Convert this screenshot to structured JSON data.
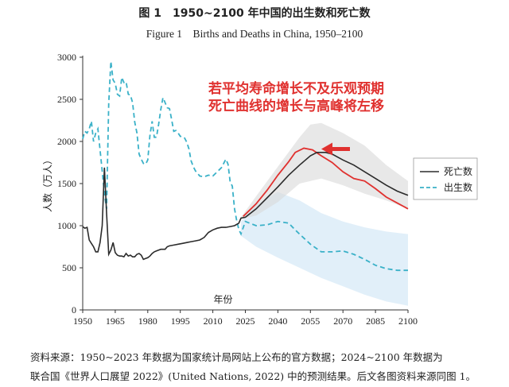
{
  "title_cn": "图 1　1950~2100 年中国的出生数和死亡数",
  "title_en": "Figure 1　Births and Deaths in China, 1950–2100",
  "annotation": [
    "若平均寿命增长不及乐观预期",
    "死亡曲线的增长与高峰将左移"
  ],
  "source": [
    "资料来源：1950~2023 年数据为国家统计局网站上公布的官方数据；2024~2100 年数据为",
    "联合国《世界人口展望 2022》(United Nations, 2022) 中的预测结果。后文各图资料来源同图 1。"
  ],
  "chart_data": {
    "type": "line",
    "ylabel": "人数（万人）",
    "xlabel": "年份",
    "xlim": [
      1950,
      2100
    ],
    "ylim": [
      0,
      3000
    ],
    "x_ticks": [
      1950,
      1965,
      1980,
      1995,
      2010,
      2025,
      2040,
      2055,
      2070,
      2085,
      2100
    ],
    "y_ticks": [
      0,
      500,
      1000,
      1500,
      2000,
      2500,
      3000
    ],
    "legend_position": "right",
    "colors": {
      "deaths": "#2b2b2b",
      "births": "#3ab1c8",
      "alt_deaths": "#e0312f",
      "deaths_band": "#d9d9d9",
      "births_band": "#dcecf8",
      "arrow": "#e0312f"
    },
    "series": [
      {
        "name": "死亡数",
        "style": "solid",
        "points": [
          [
            1950,
            990
          ],
          [
            1951,
            970
          ],
          [
            1952,
            980
          ],
          [
            1953,
            830
          ],
          [
            1954,
            790
          ],
          [
            1955,
            750
          ],
          [
            1956,
            690
          ],
          [
            1957,
            690
          ],
          [
            1958,
            800
          ],
          [
            1959,
            1000
          ],
          [
            1960,
            1690
          ],
          [
            1961,
            1150
          ],
          [
            1962,
            660
          ],
          [
            1963,
            710
          ],
          [
            1964,
            800
          ],
          [
            1965,
            680
          ],
          [
            1966,
            650
          ],
          [
            1967,
            640
          ],
          [
            1968,
            640
          ],
          [
            1969,
            630
          ],
          [
            1970,
            670
          ],
          [
            1971,
            640
          ],
          [
            1972,
            650
          ],
          [
            1973,
            630
          ],
          [
            1974,
            630
          ],
          [
            1975,
            660
          ],
          [
            1976,
            670
          ],
          [
            1977,
            650
          ],
          [
            1978,
            600
          ],
          [
            1979,
            610
          ],
          [
            1980,
            620
          ],
          [
            1981,
            640
          ],
          [
            1982,
            670
          ],
          [
            1983,
            690
          ],
          [
            1984,
            700
          ],
          [
            1985,
            710
          ],
          [
            1986,
            720
          ],
          [
            1987,
            720
          ],
          [
            1988,
            720
          ],
          [
            1989,
            750
          ],
          [
            1990,
            760
          ],
          [
            1992,
            770
          ],
          [
            1994,
            780
          ],
          [
            1996,
            790
          ],
          [
            1998,
            800
          ],
          [
            2000,
            810
          ],
          [
            2002,
            820
          ],
          [
            2004,
            830
          ],
          [
            2006,
            860
          ],
          [
            2008,
            920
          ],
          [
            2010,
            950
          ],
          [
            2012,
            970
          ],
          [
            2014,
            980
          ],
          [
            2016,
            980
          ],
          [
            2018,
            990
          ],
          [
            2020,
            1000
          ],
          [
            2022,
            1030
          ],
          [
            2023,
            1090
          ],
          [
            2025,
            1100
          ],
          [
            2030,
            1200
          ],
          [
            2035,
            1330
          ],
          [
            2040,
            1460
          ],
          [
            2045,
            1600
          ],
          [
            2050,
            1720
          ],
          [
            2055,
            1830
          ],
          [
            2058,
            1870
          ],
          [
            2062,
            1870
          ],
          [
            2065,
            1850
          ],
          [
            2070,
            1780
          ],
          [
            2075,
            1720
          ],
          [
            2080,
            1640
          ],
          [
            2085,
            1560
          ],
          [
            2090,
            1480
          ],
          [
            2095,
            1410
          ],
          [
            2100,
            1360
          ]
        ]
      },
      {
        "name": "出生数",
        "style": "dashed",
        "points": [
          [
            1950,
            2030
          ],
          [
            1951,
            2120
          ],
          [
            1952,
            2100
          ],
          [
            1953,
            2150
          ],
          [
            1954,
            2240
          ],
          [
            1955,
            2000
          ],
          [
            1956,
            2100
          ],
          [
            1957,
            2150
          ],
          [
            1958,
            1900
          ],
          [
            1959,
            1650
          ],
          [
            1960,
            1380
          ],
          [
            1961,
            1200
          ],
          [
            1962,
            2450
          ],
          [
            1963,
            2950
          ],
          [
            1964,
            2730
          ],
          [
            1965,
            2690
          ],
          [
            1966,
            2560
          ],
          [
            1967,
            2540
          ],
          [
            1968,
            2760
          ],
          [
            1969,
            2700
          ],
          [
            1970,
            2710
          ],
          [
            1971,
            2560
          ],
          [
            1972,
            2550
          ],
          [
            1973,
            2460
          ],
          [
            1974,
            2230
          ],
          [
            1975,
            2100
          ],
          [
            1976,
            1850
          ],
          [
            1977,
            1790
          ],
          [
            1978,
            1740
          ],
          [
            1979,
            1730
          ],
          [
            1980,
            1780
          ],
          [
            1981,
            2070
          ],
          [
            1982,
            2240
          ],
          [
            1983,
            2050
          ],
          [
            1984,
            2050
          ],
          [
            1985,
            2200
          ],
          [
            1986,
            2380
          ],
          [
            1987,
            2520
          ],
          [
            1988,
            2460
          ],
          [
            1989,
            2400
          ],
          [
            1990,
            2390
          ],
          [
            1991,
            2260
          ],
          [
            1992,
            2120
          ],
          [
            1993,
            2130
          ],
          [
            1994,
            2100
          ],
          [
            1995,
            2060
          ],
          [
            1996,
            2060
          ],
          [
            1997,
            2040
          ],
          [
            1998,
            1990
          ],
          [
            1999,
            1910
          ],
          [
            2000,
            1770
          ],
          [
            2001,
            1700
          ],
          [
            2002,
            1650
          ],
          [
            2004,
            1590
          ],
          [
            2006,
            1580
          ],
          [
            2008,
            1600
          ],
          [
            2010,
            1590
          ],
          [
            2012,
            1640
          ],
          [
            2014,
            1690
          ],
          [
            2016,
            1790
          ],
          [
            2017,
            1730
          ],
          [
            2018,
            1520
          ],
          [
            2019,
            1470
          ],
          [
            2020,
            1200
          ],
          [
            2021,
            1060
          ],
          [
            2022,
            956
          ],
          [
            2023,
            902
          ],
          [
            2025,
            1050
          ],
          [
            2030,
            1000
          ],
          [
            2035,
            1010
          ],
          [
            2040,
            1050
          ],
          [
            2045,
            1030
          ],
          [
            2048,
            950
          ],
          [
            2050,
            900
          ],
          [
            2055,
            780
          ],
          [
            2060,
            690
          ],
          [
            2065,
            690
          ],
          [
            2070,
            700
          ],
          [
            2075,
            660
          ],
          [
            2080,
            600
          ],
          [
            2085,
            530
          ],
          [
            2090,
            490
          ],
          [
            2095,
            470
          ],
          [
            2100,
            470
          ]
        ]
      },
      {
        "name": "",
        "style": "solid-red",
        "points": [
          [
            2024,
            1110
          ],
          [
            2030,
            1260
          ],
          [
            2035,
            1420
          ],
          [
            2040,
            1600
          ],
          [
            2045,
            1760
          ],
          [
            2048,
            1870
          ],
          [
            2052,
            1920
          ],
          [
            2056,
            1900
          ],
          [
            2060,
            1830
          ],
          [
            2065,
            1750
          ],
          [
            2070,
            1640
          ],
          [
            2075,
            1560
          ],
          [
            2080,
            1530
          ],
          [
            2085,
            1440
          ],
          [
            2090,
            1340
          ],
          [
            2095,
            1270
          ],
          [
            2100,
            1200
          ]
        ]
      }
    ],
    "deaths_band": {
      "upper": [
        [
          2023,
          1100
        ],
        [
          2030,
          1350
        ],
        [
          2040,
          1700
        ],
        [
          2050,
          2050
        ],
        [
          2055,
          2200
        ],
        [
          2060,
          2220
        ],
        [
          2070,
          2100
        ],
        [
          2080,
          1950
        ],
        [
          2090,
          1720
        ],
        [
          2100,
          1530
        ]
      ],
      "lower": [
        [
          2023,
          1080
        ],
        [
          2030,
          1120
        ],
        [
          2040,
          1280
        ],
        [
          2050,
          1500
        ],
        [
          2060,
          1560
        ],
        [
          2070,
          1480
        ],
        [
          2080,
          1380
        ],
        [
          2090,
          1300
        ],
        [
          2100,
          1200
        ]
      ]
    },
    "births_band": {
      "upper": [
        [
          2023,
          1050
        ],
        [
          2030,
          1250
        ],
        [
          2040,
          1400
        ],
        [
          2050,
          1300
        ],
        [
          2060,
          1150
        ],
        [
          2070,
          1050
        ],
        [
          2080,
          980
        ],
        [
          2090,
          930
        ],
        [
          2100,
          900
        ]
      ],
      "lower": [
        [
          2023,
          880
        ],
        [
          2030,
          750
        ],
        [
          2040,
          620
        ],
        [
          2050,
          500
        ],
        [
          2060,
          380
        ],
        [
          2070,
          280
        ],
        [
          2080,
          180
        ],
        [
          2090,
          100
        ],
        [
          2100,
          50
        ]
      ]
    }
  }
}
